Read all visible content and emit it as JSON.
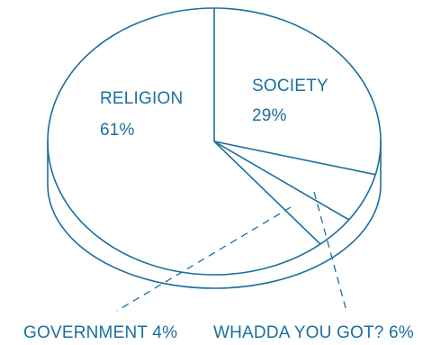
{
  "colors": {
    "ink": "#1b6f9f",
    "background": "#ffffff"
  },
  "chart_data": {
    "type": "pie",
    "style": "3d-outline",
    "slices": [
      {
        "label": "RELIGION",
        "percent_label": "61%",
        "value": 61
      },
      {
        "label": "SOCIETY",
        "percent_label": "29%",
        "value": 29
      },
      {
        "label": "WHADDA  YOU GOT?",
        "percent_label": "6%",
        "value": 6
      },
      {
        "label": "GOVERNMENT",
        "percent_label": "4%",
        "value": 4
      }
    ],
    "labels": {
      "religion_name": "RELIGION",
      "religion_pct": "61%",
      "society_name": "SOCIETY",
      "society_pct": "29%",
      "government": "GOVERNMENT 4%",
      "whadda": "WHADDA  YOU GOT? 6%"
    }
  }
}
